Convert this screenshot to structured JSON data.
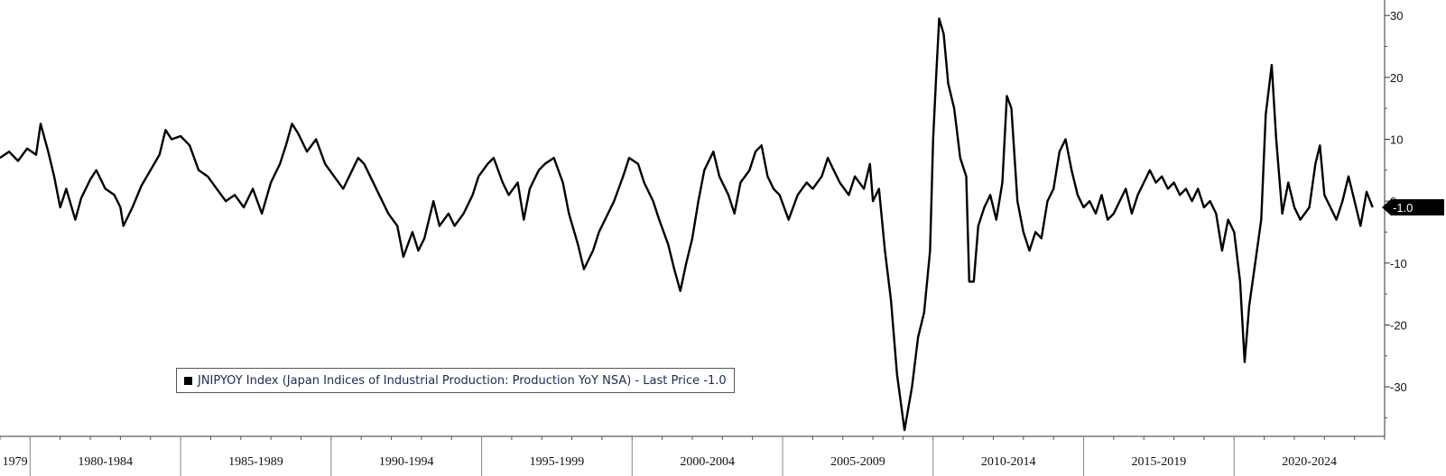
{
  "chart_data": {
    "type": "line",
    "series": [
      {
        "name": "JNIPYOY Index (Japan Indices of Industrial Production: Production YoY NSA) - Last Price",
        "color": "#000000",
        "points": [
          [
            1979.0,
            7
          ],
          [
            1979.3,
            8
          ],
          [
            1979.6,
            6.5
          ],
          [
            1979.9,
            8.5
          ],
          [
            1980.2,
            7.5
          ],
          [
            1980.35,
            12.5
          ],
          [
            1980.6,
            8
          ],
          [
            1980.8,
            4
          ],
          [
            1981.0,
            -1
          ],
          [
            1981.2,
            2
          ],
          [
            1981.5,
            -3
          ],
          [
            1981.7,
            0.5
          ],
          [
            1982.0,
            3.5
          ],
          [
            1982.2,
            5
          ],
          [
            1982.5,
            2
          ],
          [
            1982.8,
            1
          ],
          [
            1983.0,
            -1
          ],
          [
            1983.1,
            -4
          ],
          [
            1983.4,
            -1
          ],
          [
            1983.7,
            2.5
          ],
          [
            1984.0,
            5
          ],
          [
            1984.3,
            7.5
          ],
          [
            1984.5,
            11.5
          ],
          [
            1984.7,
            10
          ],
          [
            1985.0,
            10.5
          ],
          [
            1985.3,
            9
          ],
          [
            1985.6,
            5
          ],
          [
            1985.9,
            4
          ],
          [
            1986.2,
            2
          ],
          [
            1986.5,
            0
          ],
          [
            1986.8,
            1
          ],
          [
            1987.1,
            -1
          ],
          [
            1987.4,
            2
          ],
          [
            1987.7,
            -2
          ],
          [
            1988.0,
            3
          ],
          [
            1988.3,
            6
          ],
          [
            1988.5,
            9
          ],
          [
            1988.7,
            12.5
          ],
          [
            1988.9,
            11
          ],
          [
            1989.2,
            8
          ],
          [
            1989.5,
            10
          ],
          [
            1989.8,
            6
          ],
          [
            1990.1,
            4
          ],
          [
            1990.4,
            2
          ],
          [
            1990.7,
            5
          ],
          [
            1990.9,
            7
          ],
          [
            1991.1,
            6
          ],
          [
            1991.3,
            4
          ],
          [
            1991.6,
            1
          ],
          [
            1991.9,
            -2
          ],
          [
            1992.2,
            -4
          ],
          [
            1992.4,
            -9
          ],
          [
            1992.7,
            -5
          ],
          [
            1992.9,
            -8
          ],
          [
            1993.1,
            -6
          ],
          [
            1993.4,
            0
          ],
          [
            1993.6,
            -4
          ],
          [
            1993.9,
            -2
          ],
          [
            1994.1,
            -4
          ],
          [
            1994.4,
            -2
          ],
          [
            1994.7,
            1
          ],
          [
            1994.9,
            4
          ],
          [
            1995.2,
            6
          ],
          [
            1995.4,
            7
          ],
          [
            1995.7,
            3
          ],
          [
            1995.9,
            1
          ],
          [
            1996.2,
            3
          ],
          [
            1996.4,
            -3
          ],
          [
            1996.6,
            2
          ],
          [
            1996.9,
            5
          ],
          [
            1997.1,
            6
          ],
          [
            1997.4,
            7
          ],
          [
            1997.7,
            3
          ],
          [
            1997.9,
            -2
          ],
          [
            1998.2,
            -7
          ],
          [
            1998.4,
            -11
          ],
          [
            1998.7,
            -8
          ],
          [
            1998.9,
            -5
          ],
          [
            1999.2,
            -2
          ],
          [
            1999.4,
            0
          ],
          [
            1999.7,
            4
          ],
          [
            1999.9,
            7
          ],
          [
            2000.2,
            6
          ],
          [
            2000.4,
            3
          ],
          [
            2000.7,
            0
          ],
          [
            2000.9,
            -3
          ],
          [
            2001.2,
            -7
          ],
          [
            2001.4,
            -11
          ],
          [
            2001.6,
            -14.5
          ],
          [
            2001.8,
            -10
          ],
          [
            2002.0,
            -6
          ],
          [
            2002.2,
            0
          ],
          [
            2002.4,
            5
          ],
          [
            2002.7,
            8
          ],
          [
            2002.9,
            4
          ],
          [
            2003.2,
            1
          ],
          [
            2003.4,
            -2
          ],
          [
            2003.6,
            3
          ],
          [
            2003.9,
            5
          ],
          [
            2004.1,
            8
          ],
          [
            2004.3,
            9
          ],
          [
            2004.5,
            4
          ],
          [
            2004.7,
            2
          ],
          [
            2004.9,
            1
          ],
          [
            2005.2,
            -3
          ],
          [
            2005.5,
            1
          ],
          [
            2005.8,
            3
          ],
          [
            2006.0,
            2
          ],
          [
            2006.3,
            4
          ],
          [
            2006.5,
            7
          ],
          [
            2006.7,
            5
          ],
          [
            2006.9,
            3
          ],
          [
            2007.2,
            1
          ],
          [
            2007.4,
            4
          ],
          [
            2007.7,
            2
          ],
          [
            2007.9,
            6
          ],
          [
            2008.0,
            0
          ],
          [
            2008.2,
            2
          ],
          [
            2008.4,
            -8
          ],
          [
            2008.6,
            -16
          ],
          [
            2008.8,
            -28
          ],
          [
            2009.05,
            -37
          ],
          [
            2009.3,
            -30
          ],
          [
            2009.5,
            -22
          ],
          [
            2009.7,
            -18
          ],
          [
            2009.9,
            -8
          ],
          [
            2010.0,
            10
          ],
          [
            2010.1,
            20
          ],
          [
            2010.2,
            29.5
          ],
          [
            2010.35,
            27
          ],
          [
            2010.5,
            19
          ],
          [
            2010.7,
            15
          ],
          [
            2010.9,
            7
          ],
          [
            2011.1,
            4
          ],
          [
            2011.2,
            -13
          ],
          [
            2011.35,
            -13
          ],
          [
            2011.5,
            -4
          ],
          [
            2011.7,
            -1
          ],
          [
            2011.9,
            1
          ],
          [
            2012.1,
            -3
          ],
          [
            2012.3,
            3
          ],
          [
            2012.45,
            17
          ],
          [
            2012.6,
            15
          ],
          [
            2012.8,
            0
          ],
          [
            2013.0,
            -5
          ],
          [
            2013.2,
            -8
          ],
          [
            2013.4,
            -5
          ],
          [
            2013.6,
            -6
          ],
          [
            2013.8,
            0
          ],
          [
            2014.0,
            2
          ],
          [
            2014.2,
            8
          ],
          [
            2014.4,
            10
          ],
          [
            2014.6,
            5
          ],
          [
            2014.8,
            1
          ],
          [
            2015.0,
            -1
          ],
          [
            2015.2,
            0
          ],
          [
            2015.4,
            -2
          ],
          [
            2015.6,
            1
          ],
          [
            2015.8,
            -3
          ],
          [
            2016.0,
            -2
          ],
          [
            2016.2,
            0
          ],
          [
            2016.4,
            2
          ],
          [
            2016.6,
            -2
          ],
          [
            2016.8,
            1
          ],
          [
            2017.0,
            3
          ],
          [
            2017.2,
            5
          ],
          [
            2017.4,
            3
          ],
          [
            2017.6,
            4
          ],
          [
            2017.8,
            2
          ],
          [
            2018.0,
            3
          ],
          [
            2018.2,
            1
          ],
          [
            2018.4,
            2
          ],
          [
            2018.6,
            0
          ],
          [
            2018.8,
            2
          ],
          [
            2019.0,
            -1
          ],
          [
            2019.2,
            0
          ],
          [
            2019.4,
            -2
          ],
          [
            2019.6,
            -8
          ],
          [
            2019.8,
            -3
          ],
          [
            2020.0,
            -5
          ],
          [
            2020.2,
            -13
          ],
          [
            2020.35,
            -26
          ],
          [
            2020.5,
            -17
          ],
          [
            2020.7,
            -10
          ],
          [
            2020.9,
            -3
          ],
          [
            2021.05,
            14
          ],
          [
            2021.25,
            22
          ],
          [
            2021.4,
            10
          ],
          [
            2021.6,
            -2
          ],
          [
            2021.8,
            3
          ],
          [
            2022.0,
            -1
          ],
          [
            2022.2,
            -3
          ],
          [
            2022.5,
            -1
          ],
          [
            2022.7,
            6
          ],
          [
            2022.85,
            9
          ],
          [
            2023.0,
            1
          ],
          [
            2023.2,
            -1
          ],
          [
            2023.4,
            -3
          ],
          [
            2023.6,
            0
          ],
          [
            2023.8,
            4
          ],
          [
            2024.0,
            0
          ],
          [
            2024.2,
            -4
          ],
          [
            2024.4,
            1.5
          ],
          [
            2024.6,
            -1
          ]
        ]
      }
    ],
    "last_price_label": "-1.0",
    "legend_text": "JNIPYOY Index (Japan Indices of Industrial Production: Production YoY NSA) - Last Price -1.0",
    "y_axis": {
      "position": "right",
      "ylim": [
        -38,
        32.5
      ],
      "ticks": [
        30,
        20,
        10,
        0,
        -10,
        -20,
        -30
      ],
      "tick_labels": [
        "30",
        "20",
        "10",
        "0",
        "-10",
        "-20",
        "-30"
      ]
    },
    "x_axis": {
      "xlim": [
        1979.0,
        2025.0
      ],
      "groups": [
        {
          "label": "1979",
          "start": 1979,
          "end": 1980
        },
        {
          "label": "1980-1984",
          "start": 1980,
          "end": 1985
        },
        {
          "label": "1985-1989",
          "start": 1985,
          "end": 1990
        },
        {
          "label": "1990-1994",
          "start": 1990,
          "end": 1995
        },
        {
          "label": "1995-1999",
          "start": 1995,
          "end": 2000
        },
        {
          "label": "2000-2004",
          "start": 2000,
          "end": 2005
        },
        {
          "label": "2005-2009",
          "start": 2005,
          "end": 2010
        },
        {
          "label": "2010-2014",
          "start": 2010,
          "end": 2015
        },
        {
          "label": "2015-2019",
          "start": 2015,
          "end": 2020
        },
        {
          "label": "2020-2024",
          "start": 2020,
          "end": 2025
        }
      ]
    },
    "legend_placement": "bottom-left",
    "grid": false
  }
}
